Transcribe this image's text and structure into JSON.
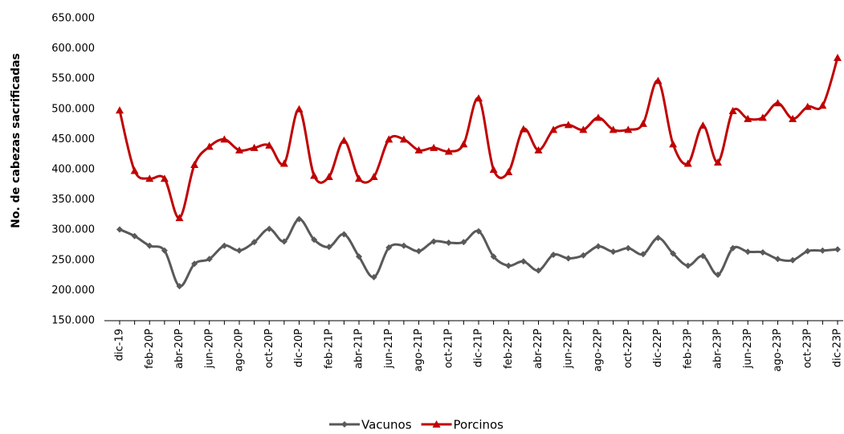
{
  "chart_data": {
    "type": "line",
    "y_label": "No. de cabezas sacrificadas",
    "categories": [
      "dic-19",
      null,
      "feb-20P",
      null,
      "abr-20P",
      null,
      "jun-20P",
      null,
      "ago-20P",
      null,
      "oct-20P",
      null,
      "dic-20P",
      null,
      "feb-21P",
      null,
      "abr-21P",
      null,
      "jun-21P",
      null,
      "ago-21P",
      null,
      "oct-21P",
      null,
      "dic-21P",
      null,
      "feb-22P",
      null,
      "abr-22P",
      null,
      "jun-22P",
      null,
      "ago-22P",
      null,
      "oct-22P",
      null,
      "dic-22P",
      null,
      "feb-23P",
      null,
      "abr-23P",
      null,
      "jun-23P",
      null,
      "ago-23P",
      null,
      "oct-23P",
      null,
      "dic-23P"
    ],
    "series": [
      {
        "name": "Vacunos",
        "color": "#595959",
        "marker": "diamond",
        "values": [
          301000,
          290000,
          274000,
          266000,
          207000,
          244000,
          252000,
          274000,
          266000,
          280000,
          302000,
          281000,
          318000,
          284000,
          272000,
          293000,
          256000,
          222000,
          271000,
          274000,
          265000,
          281000,
          279000,
          280000,
          298000,
          256000,
          241000,
          248000,
          233000,
          259000,
          253000,
          258000,
          273000,
          264000,
          270000,
          260000,
          287000,
          261000,
          241000,
          257000,
          226000,
          270000,
          264000,
          263000,
          252000,
          250000,
          265000,
          266000,
          268000
        ]
      },
      {
        "name": "Porcinos",
        "color": "#c00000",
        "marker": "triangle",
        "values": [
          498000,
          398000,
          385000,
          385000,
          320000,
          408000,
          438000,
          450000,
          432000,
          436000,
          440000,
          410000,
          500000,
          390000,
          388000,
          448000,
          385000,
          388000,
          450000,
          450000,
          432000,
          436000,
          430000,
          442000,
          518000,
          400000,
          396000,
          467000,
          432000,
          466000,
          474000,
          466000,
          486000,
          466000,
          466000,
          476000,
          547000,
          442000,
          410000,
          473000,
          412000,
          497000,
          484000,
          486000,
          510000,
          484000,
          504000,
          506000,
          585000
        ]
      }
    ],
    "ylim": [
      150000,
      650000
    ],
    "yticks": [
      {
        "value": 150000,
        "label": "150.000"
      },
      {
        "value": 200000,
        "label": "200.000"
      },
      {
        "value": 250000,
        "label": "250.000"
      },
      {
        "value": 300000,
        "label": "300.000"
      },
      {
        "value": 350000,
        "label": "350.000"
      },
      {
        "value": 400000,
        "label": "400.000"
      },
      {
        "value": 450000,
        "label": "450.000"
      },
      {
        "value": 500000,
        "label": "500.000"
      },
      {
        "value": 550000,
        "label": "550.000"
      },
      {
        "value": 600000,
        "label": "600.000"
      },
      {
        "value": 650000,
        "label": "650.000"
      }
    ],
    "grid": false,
    "legend": "bottom"
  }
}
